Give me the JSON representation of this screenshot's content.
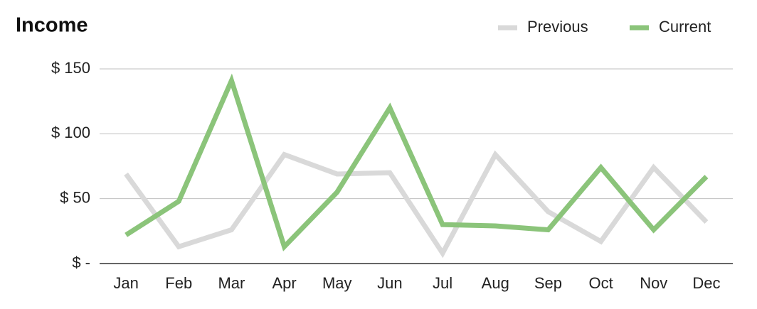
{
  "chart_data": {
    "type": "line",
    "title": "Income",
    "categories": [
      "Jan",
      "Feb",
      "Mar",
      "Apr",
      "May",
      "Jun",
      "Jul",
      "Aug",
      "Sep",
      "Oct",
      "Nov",
      "Dec"
    ],
    "series": [
      {
        "name": "Previous",
        "color": "#d9d9d9",
        "values": [
          69,
          13,
          26,
          84,
          69,
          70,
          8,
          84,
          40,
          17,
          74,
          32
        ]
      },
      {
        "name": "Current",
        "color": "#8bc47a",
        "values": [
          22,
          48,
          141,
          13,
          55,
          120,
          30,
          29,
          26,
          74,
          26,
          67
        ]
      }
    ],
    "ylim": [
      0,
      150
    ],
    "yticks": [
      {
        "value": 0,
        "label": "$ -"
      },
      {
        "value": 50,
        "label": "$ 50"
      },
      {
        "value": 100,
        "label": "$ 100"
      },
      {
        "value": 150,
        "label": "$ 150"
      }
    ],
    "grid": true,
    "legend": "top-right"
  }
}
